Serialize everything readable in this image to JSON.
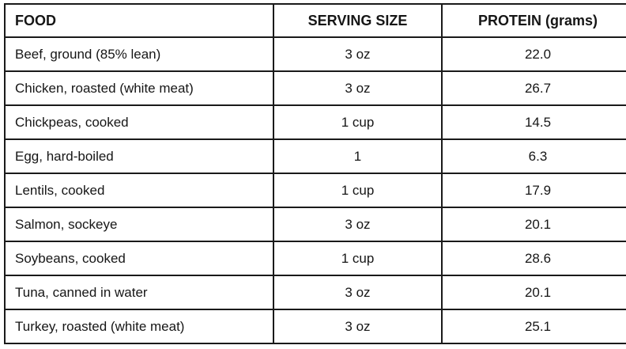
{
  "chart_data": {
    "type": "table",
    "title": "",
    "columns": [
      "FOOD",
      "SERVING SIZE",
      "PROTEIN (grams)"
    ],
    "rows": [
      [
        "Beef, ground (85% lean)",
        "3 oz",
        "22.0"
      ],
      [
        "Chicken, roasted (white meat)",
        "3 oz",
        "26.7"
      ],
      [
        "Chickpeas, cooked",
        "1 cup",
        "14.5"
      ],
      [
        "Egg, hard-boiled",
        "1",
        "6.3"
      ],
      [
        "Lentils, cooked",
        "1 cup",
        "17.9"
      ],
      [
        "Salmon, sockeye",
        "3 oz",
        "20.1"
      ],
      [
        "Soybeans, cooked",
        "1 cup",
        "28.6"
      ],
      [
        "Tuna, canned in water",
        "3 oz",
        "20.1"
      ],
      [
        "Turkey, roasted (white meat)",
        "3 oz",
        "25.1"
      ]
    ],
    "layout": {
      "header_bold": true,
      "first_column_align": "left",
      "other_columns_align": "center",
      "grid": "on"
    }
  },
  "colors": {
    "border": "#1a1a1a",
    "text": "#161616",
    "background": "#ffffff"
  }
}
